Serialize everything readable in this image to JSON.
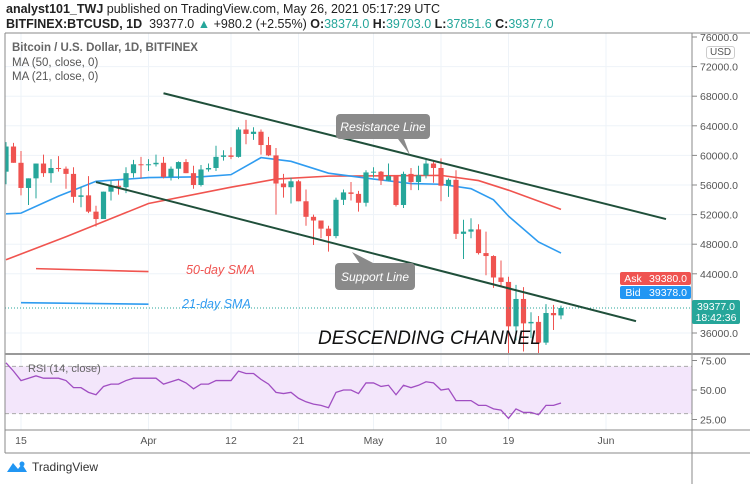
{
  "header": {
    "author": "analyst101_TWJ",
    "published": "published on TradingView.com, May 26, 2021 05:17:29 UTC",
    "symbol": "BITFINEX:BTCUSD, 1D",
    "last": "39377.0",
    "change": "+980.2 (+2.55%)",
    "o_label": "O:",
    "o": "38374.0",
    "h_label": "H:",
    "h": "39703.0",
    "l_label": "L:",
    "l": "37851.6",
    "c_label": "C:",
    "c": "39377.0"
  },
  "legend": {
    "title": "Bitcoin / U.S. Dollar, 1D, BITFINEX",
    "ma50": "MA (50, close, 0)",
    "ma21": "MA (21, close, 0)",
    "rsi": "RSI (14, close)"
  },
  "currency": "USD",
  "footer": {
    "brand": "TradingView"
  },
  "colors": {
    "up": "#26a69a",
    "down": "#ef5350",
    "ma50": "#f0544f",
    "ma21": "#2f9cf0",
    "rsi": "#a04ec2",
    "trendline": "#1f4f3a",
    "ask": "#ef5350",
    "bid": "#2196f3"
  },
  "annotations": {
    "resistance": "Resistance Line",
    "support": "Support Line",
    "channel": "DESCENDING CHANNEL",
    "sma50": "50-day SMA",
    "sma21": "21-day SMA"
  },
  "price_tags": {
    "ask_label": "Ask",
    "ask": "39380.0",
    "bid_label": "Bid",
    "bid": "39378.0",
    "last": "39377.0",
    "countdown": "18:42:36"
  },
  "chart_data": {
    "type": "candlestick",
    "price_ticks": [
      "76000.0",
      "72000.0",
      "68000.0",
      "64000.0",
      "60000.0",
      "56000.0",
      "52000.0",
      "48000.0",
      "44000.0",
      "36000.0"
    ],
    "price_range": [
      33700,
      76000
    ],
    "date_ticks": [
      {
        "label": "15",
        "date": "2021-03-15"
      },
      {
        "label": "Apr",
        "date": "2021-04-01"
      },
      {
        "label": "12",
        "date": "2021-04-12"
      },
      {
        "label": "21",
        "date": "2021-04-21"
      },
      {
        "label": "May",
        "date": "2021-05-01"
      },
      {
        "label": "10",
        "date": "2021-05-10"
      },
      {
        "label": "19",
        "date": "2021-05-19"
      },
      {
        "label": "Jun",
        "date": "2021-06-01"
      }
    ],
    "rsi_ticks": [
      "75.00",
      "50.00",
      "25.00"
    ],
    "rsi_band": [
      30,
      70
    ],
    "candles": [
      [
        "2021-03-13",
        57800,
        61800,
        56100,
        61200
      ],
      [
        "2021-03-14",
        61200,
        61700,
        59000,
        59000
      ],
      [
        "2021-03-15",
        59000,
        60600,
        54600,
        55600
      ],
      [
        "2021-03-16",
        55600,
        56900,
        53300,
        56900
      ],
      [
        "2021-03-17",
        56900,
        58900,
        54200,
        58900
      ],
      [
        "2021-03-18",
        58900,
        60100,
        57100,
        57600
      ],
      [
        "2021-03-19",
        57600,
        59500,
        56300,
        58300
      ],
      [
        "2021-03-20",
        58300,
        59900,
        57800,
        58200
      ],
      [
        "2021-03-21",
        58200,
        58500,
        55500,
        57500
      ],
      [
        "2021-03-22",
        57500,
        58400,
        53600,
        54400
      ],
      [
        "2021-03-23",
        54400,
        55800,
        53000,
        54600
      ],
      [
        "2021-03-24",
        54600,
        57200,
        52200,
        52400
      ],
      [
        "2021-03-25",
        52400,
        53200,
        50400,
        51400
      ],
      [
        "2021-03-26",
        51400,
        55100,
        51400,
        55100
      ],
      [
        "2021-03-27",
        55100,
        56600,
        53900,
        55900
      ],
      [
        "2021-03-28",
        55900,
        56600,
        54700,
        55700
      ],
      [
        "2021-03-29",
        55700,
        58400,
        54900,
        57600
      ],
      [
        "2021-03-30",
        57600,
        59400,
        57000,
        58800
      ],
      [
        "2021-03-31",
        58800,
        59800,
        56900,
        58700
      ],
      [
        "2021-04-01",
        58700,
        59500,
        57900,
        58800
      ],
      [
        "2021-04-02",
        58800,
        60100,
        58500,
        59000
      ],
      [
        "2021-04-03",
        59000,
        59800,
        56900,
        57100
      ],
      [
        "2021-04-04",
        57100,
        58500,
        56600,
        58200
      ],
      [
        "2021-04-05",
        58200,
        59200,
        56800,
        59100
      ],
      [
        "2021-04-06",
        59100,
        59500,
        57600,
        57600
      ],
      [
        "2021-04-07",
        57600,
        58600,
        55500,
        56000
      ],
      [
        "2021-04-08",
        56000,
        58700,
        55800,
        58100
      ],
      [
        "2021-04-09",
        58100,
        58900,
        57800,
        58300
      ],
      [
        "2021-04-10",
        58300,
        61300,
        57900,
        59800
      ],
      [
        "2021-04-11",
        59800,
        60700,
        59300,
        60000
      ],
      [
        "2021-04-12",
        60000,
        61100,
        59500,
        59800
      ],
      [
        "2021-04-13",
        59800,
        63800,
        59700,
        63500
      ],
      [
        "2021-04-14",
        63500,
        64800,
        61500,
        62900
      ],
      [
        "2021-04-15",
        62900,
        63800,
        62100,
        63200
      ],
      [
        "2021-04-16",
        63200,
        63500,
        60100,
        61400
      ],
      [
        "2021-04-17",
        61400,
        62500,
        59900,
        60000
      ],
      [
        "2021-04-18",
        60000,
        61000,
        52000,
        56200
      ],
      [
        "2021-04-19",
        56200,
        57500,
        54300,
        55700
      ],
      [
        "2021-04-20",
        55700,
        57000,
        53500,
        56500
      ],
      [
        "2021-04-21",
        56500,
        56700,
        53800,
        53800
      ],
      [
        "2021-04-22",
        53800,
        55400,
        50500,
        51700
      ],
      [
        "2021-04-23",
        51700,
        52000,
        47900,
        51200
      ],
      [
        "2021-04-24",
        51200,
        51200,
        48800,
        50100
      ],
      [
        "2021-04-25",
        50100,
        50500,
        47000,
        49100
      ],
      [
        "2021-04-26",
        49100,
        54300,
        48800,
        54000
      ],
      [
        "2021-04-27",
        54000,
        55400,
        53300,
        55000
      ],
      [
        "2021-04-28",
        55000,
        56400,
        53900,
        54800
      ],
      [
        "2021-04-29",
        54800,
        55200,
        52400,
        53600
      ],
      [
        "2021-04-30",
        53600,
        58000,
        53100,
        57700
      ],
      [
        "2021-05-01",
        57700,
        58400,
        57000,
        57800
      ],
      [
        "2021-05-02",
        57800,
        57900,
        56000,
        56600
      ],
      [
        "2021-05-03",
        56600,
        58900,
        56500,
        57200
      ],
      [
        "2021-05-04",
        57200,
        57200,
        53100,
        53300
      ],
      [
        "2021-05-05",
        53300,
        57800,
        52900,
        57500
      ],
      [
        "2021-05-06",
        57500,
        58300,
        55300,
        56400
      ],
      [
        "2021-05-07",
        56400,
        58600,
        55300,
        57300
      ],
      [
        "2021-05-08",
        57300,
        59500,
        56900,
        58900
      ],
      [
        "2021-05-09",
        58900,
        59300,
        56300,
        58300
      ],
      [
        "2021-05-10",
        58300,
        59600,
        53800,
        55900
      ],
      [
        "2021-05-11",
        55900,
        56900,
        54400,
        56700
      ],
      [
        "2021-05-12",
        56700,
        58000,
        48700,
        49400
      ],
      [
        "2021-05-13",
        49400,
        51300,
        46000,
        49700
      ],
      [
        "2021-05-14",
        49700,
        51500,
        48800,
        50000
      ],
      [
        "2021-05-15",
        50000,
        50700,
        46600,
        46800
      ],
      [
        "2021-05-16",
        46800,
        49700,
        43800,
        46400
      ],
      [
        "2021-05-17",
        46400,
        46500,
        42100,
        43500
      ],
      [
        "2021-05-18",
        43500,
        45800,
        42300,
        42900
      ],
      [
        "2021-05-19",
        42900,
        43600,
        30000,
        36900
      ],
      [
        "2021-05-20",
        36900,
        42500,
        35000,
        40600
      ],
      [
        "2021-05-21",
        40600,
        42200,
        33500,
        37300
      ],
      [
        "2021-05-22",
        37300,
        38800,
        35300,
        37500
      ],
      [
        "2021-05-23",
        37500,
        38300,
        31100,
        34700
      ],
      [
        "2021-05-24",
        34700,
        39900,
        34400,
        38700
      ],
      [
        "2021-05-25",
        38700,
        39800,
        36400,
        38400
      ],
      [
        "2021-05-26",
        38374,
        39703,
        37851.6,
        39377
      ]
    ],
    "ma21": [
      [
        "2021-03-13",
        52100
      ],
      [
        "2021-03-15",
        52200
      ],
      [
        "2021-03-20",
        54500
      ],
      [
        "2021-03-25",
        56500
      ],
      [
        "2021-04-01",
        57000
      ],
      [
        "2021-04-08",
        57100
      ],
      [
        "2021-04-12",
        57400
      ],
      [
        "2021-04-16",
        59700
      ],
      [
        "2021-04-20",
        59200
      ],
      [
        "2021-04-25",
        57600
      ],
      [
        "2021-05-01",
        56800
      ],
      [
        "2021-05-06",
        56200
      ],
      [
        "2021-05-10",
        56100
      ],
      [
        "2021-05-14",
        55500
      ],
      [
        "2021-05-17",
        54000
      ],
      [
        "2021-05-19",
        51800
      ],
      [
        "2021-05-23",
        48300
      ],
      [
        "2021-05-26",
        46800
      ]
    ],
    "ma50": [
      [
        "2021-03-13",
        45900
      ],
      [
        "2021-03-21",
        49000
      ],
      [
        "2021-04-01",
        53500
      ],
      [
        "2021-04-12",
        55700
      ],
      [
        "2021-04-18",
        56800
      ],
      [
        "2021-04-25",
        57200
      ],
      [
        "2021-05-10",
        57300
      ],
      [
        "2021-05-15",
        56600
      ],
      [
        "2021-05-19",
        55300
      ],
      [
        "2021-05-26",
        52700
      ]
    ],
    "rsi": [
      73,
      66,
      58,
      60,
      62,
      60,
      60,
      60,
      58,
      52,
      52,
      48,
      46,
      53,
      55,
      55,
      58,
      60,
      60,
      60,
      60,
      55,
      57,
      59,
      56,
      51,
      55,
      55,
      58,
      58,
      58,
      66,
      64,
      64,
      59,
      55,
      48,
      47,
      48,
      43,
      40,
      38,
      37,
      35,
      48,
      50,
      50,
      47,
      56,
      56,
      53,
      54,
      46,
      54,
      52,
      54,
      57,
      56,
      50,
      51,
      41,
      41,
      41,
      37,
      37,
      34,
      33,
      26,
      34,
      31,
      31,
      29,
      37,
      37,
      39
    ],
    "trendlines": [
      {
        "name": "resistance",
        "from": [
          "2021-04-03",
          68400
        ],
        "to": [
          "2021-06-09",
          51400
        ]
      },
      {
        "name": "support",
        "from": [
          "2021-03-25",
          56400
        ],
        "to": [
          "2021-06-05",
          37600
        ]
      }
    ],
    "sma_legend_lines": [
      {
        "name": "sma50",
        "from": [
          "2021-03-17",
          44700
        ],
        "to": [
          "2021-04-01",
          44300
        ]
      },
      {
        "name": "sma21",
        "from": [
          "2021-03-15",
          40100
        ],
        "to": [
          "2021-04-01",
          39900
        ]
      }
    ]
  }
}
